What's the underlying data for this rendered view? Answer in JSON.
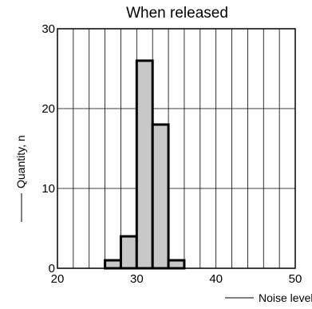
{
  "chart_data": {
    "type": "bar",
    "title": "When released",
    "xlabel": "Noise level, dB",
    "ylabel": "Quantity, n",
    "xlim": [
      20,
      50
    ],
    "ylim": [
      0,
      30
    ],
    "x_ticks": [
      20,
      30,
      40,
      50
    ],
    "y_ticks": [
      0,
      10,
      20,
      30
    ],
    "x_tick_labels": [
      "20",
      "30",
      "40",
      "50"
    ],
    "y_tick_labels": [
      "0",
      "10",
      "20",
      "30"
    ],
    "bin_width": 2,
    "bins": [
      {
        "start": 26,
        "end": 28,
        "value": 1
      },
      {
        "start": 28,
        "end": 30,
        "value": 4
      },
      {
        "start": 30,
        "end": 32,
        "value": 26
      },
      {
        "start": 32,
        "end": 34,
        "value": 18
      },
      {
        "start": 34,
        "end": 36,
        "value": 1
      }
    ],
    "grid": true,
    "bar_color": "#c8c8c8",
    "edge_color": "#000000"
  }
}
